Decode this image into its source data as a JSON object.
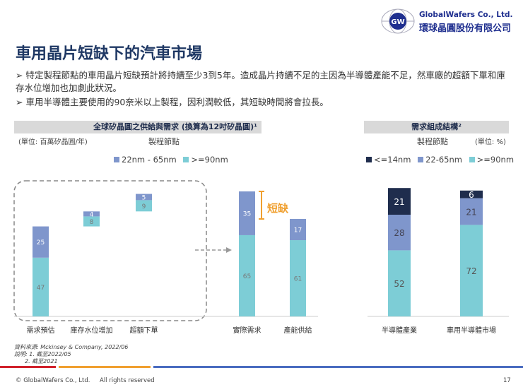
{
  "header": {
    "title": "車用晶片短缺下的汽車市場",
    "logo_en": "GlobalWafers Co., Ltd.",
    "logo_zh": "環球晶圓股份有限公司",
    "logo_mark": "GW"
  },
  "bullets": [
    "特定製程節點的車用晶片短缺預計將持續至少3到5年。造成晶片持續不足的主因為半導體產能不足，然車廠的超額下單和庫存水位增加也加劇此狀況。",
    "車用半導體主要使用的90奈米以上製程，因利潤較低，其短缺時間將會拉長。"
  ],
  "colors": {
    "navy": "#1f2d4d",
    "blue": "#7f96cc",
    "teal": "#7dcdd6",
    "accent": "#f0a030",
    "title": "#1f3864"
  },
  "chart_data": [
    {
      "type": "bar",
      "title": "全球矽晶圓之供給與需求 (換算為12吋矽晶圓)¹",
      "unit": "(單位: 百萬矽晶圓/年)",
      "legend_title": "製程節點",
      "categories": [
        "需求預估",
        "庫存水位增加",
        "超額下單",
        "實際需求",
        "產能供給"
      ],
      "series": [
        {
          "name": ">=90nm",
          "values": [
            47,
            8,
            9,
            65,
            61
          ]
        },
        {
          "name": "22nm - 65nm",
          "values": [
            25,
            4,
            5,
            35,
            17
          ]
        }
      ],
      "waterfall_offsets": [
        0,
        72,
        84,
        0,
        0
      ],
      "annotation": "短缺",
      "legend_placement": "top"
    },
    {
      "type": "bar",
      "title": "需求組成結構²",
      "unit": "(單位: %)",
      "legend_title": "製程節點",
      "categories": [
        "半導體產業",
        "車用半導體市場"
      ],
      "series": [
        {
          "name": ">=90nm",
          "values": [
            52,
            72
          ]
        },
        {
          "name": "22-65nm",
          "values": [
            28,
            21
          ]
        },
        {
          "name": "<=14nm",
          "values": [
            21,
            6
          ]
        }
      ],
      "legend_placement": "top"
    }
  ],
  "footer": {
    "source": "資料來源: Mckinsey & Company, 2022/06",
    "note1": "說明: 1. 截至2022/05",
    "note2": "2. 截至2021",
    "copyright": "© GlobalWafers  Co., Ltd.",
    "rights": "All rights reserved",
    "page": "17"
  }
}
